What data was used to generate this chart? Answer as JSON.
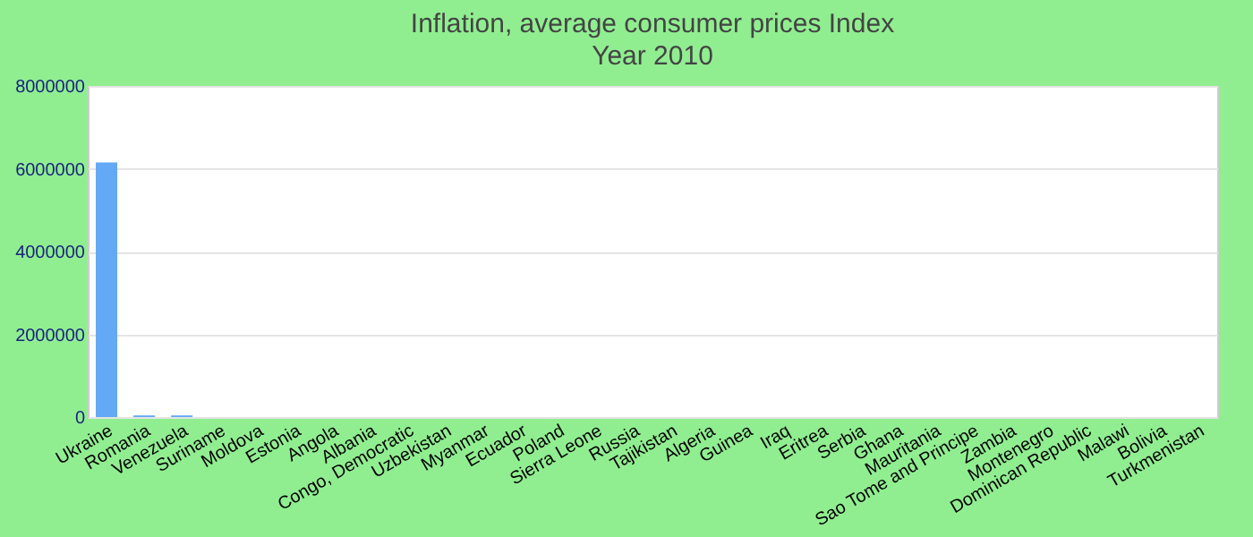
{
  "chart_data": {
    "type": "bar",
    "title": "Inflation, average consumer prices  Index",
    "subtitle": "Year 2010",
    "categories": [
      "Ukraine",
      "Romania",
      "Venezuela",
      "Suriname",
      "Moldova",
      "Estonia",
      "Angola",
      "Albania",
      "Congo, Democratic",
      "Uzbekistan",
      "Myanmar",
      "Ecuador",
      "Poland",
      "Sierra Leone",
      "Russia",
      "Tajikistan",
      "Algeria",
      "Guinea",
      "Iraq",
      "Eritrea",
      "Serbia",
      "Ghana",
      "Mauritania",
      "Sao Tome and Principe",
      "Zambia",
      "Montenegro",
      "Dominican Republic",
      "Malawi",
      "Bolivia",
      "Turkmenistan"
    ],
    "series": [
      {
        "color": "#63a9f5",
        "values": [
          6150000,
          40000,
          40000,
          0,
          0,
          0,
          0,
          0,
          0,
          0,
          0,
          0,
          0,
          0,
          0,
          0,
          0,
          0,
          0,
          0,
          0,
          0,
          0,
          0,
          0,
          0,
          0,
          0,
          0,
          0
        ]
      }
    ],
    "ylim": [
      0,
      8000000
    ],
    "yticks": [
      0,
      2000000,
      4000000,
      6000000,
      8000000
    ],
    "grid": "y"
  }
}
